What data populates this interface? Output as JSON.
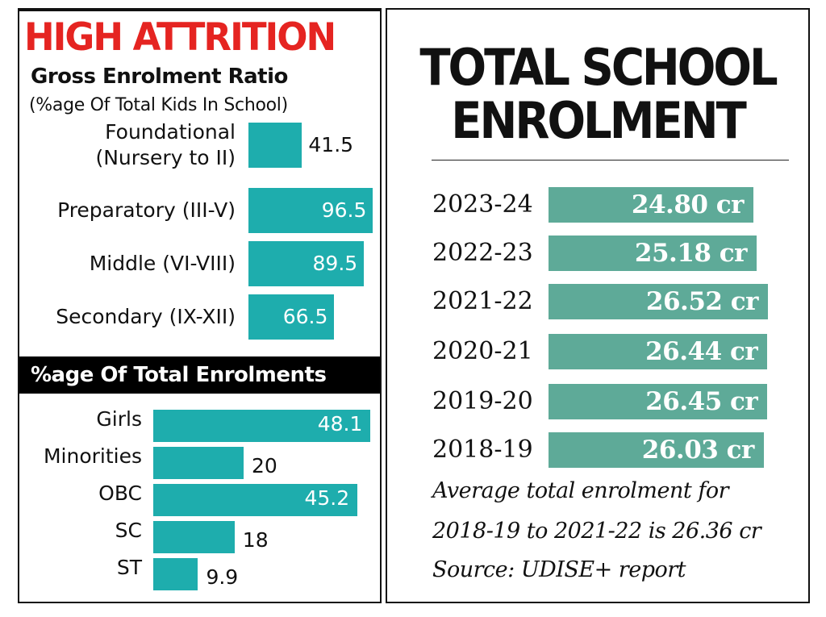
{
  "left": {
    "title": "HIGH ATTRITION",
    "gross": {
      "title": "Gross Enrolment Ratio",
      "subtitle": "(%age Of Total Kids In School)"
    },
    "section2_title": "%age Of Total Enrolments"
  },
  "right": {
    "title_line1": "TOTAL SCHOOL",
    "title_line2": "ENROLMENT",
    "note_line1": "Average total enrolment for",
    "note_line2": "2018-19 to 2021-22 is 26.36 cr",
    "source": "Source: UDISE+ report"
  },
  "colors": {
    "title_red": "#e52421",
    "teal": "#1eadad",
    "green_teal": "#5eaa98"
  },
  "chart_data": [
    {
      "type": "bar",
      "orientation": "horizontal",
      "title": "Gross Enrolment Ratio",
      "subtitle": "(%age Of Total Kids In School)",
      "categories": [
        "Foundational (Nursery to II)",
        "Preparatory (III-V)",
        "Middle (VI-VIII)",
        "Secondary (IX-XII)"
      ],
      "category_lines": [
        [
          "Foundational",
          "(Nursery to II)"
        ],
        [
          "Preparatory (III-V)"
        ],
        [
          "Middle (VI-VIII)"
        ],
        [
          "Secondary (IX-XII)"
        ]
      ],
      "values": [
        41.5,
        96.5,
        89.5,
        66.5
      ],
      "value_labels": [
        "41.5",
        "96.5",
        "89.5",
        "66.5"
      ],
      "xlim": [
        0,
        100
      ]
    },
    {
      "type": "bar",
      "orientation": "horizontal",
      "title": "%age Of Total Enrolments",
      "categories": [
        "Girls",
        "Minorities",
        "OBC",
        "SC",
        "ST"
      ],
      "values": [
        48.1,
        20,
        45.2,
        18,
        9.9
      ],
      "value_labels": [
        "48.1",
        "20",
        "45.2",
        "18",
        "9.9"
      ],
      "xlim": [
        0,
        50
      ]
    },
    {
      "type": "bar",
      "orientation": "horizontal",
      "title": "TOTAL SCHOOL ENROLMENT",
      "categories": [
        "2023-24",
        "2022-23",
        "2021-22",
        "2020-21",
        "2019-20",
        "2018-19"
      ],
      "values": [
        24.8,
        25.18,
        26.52,
        26.44,
        26.45,
        26.03
      ],
      "value_labels": [
        "24.80 cr",
        "25.18 cr",
        "26.52 cr",
        "26.44 cr",
        "26.45 cr",
        "26.03 cr"
      ],
      "unit": "cr"
    }
  ]
}
